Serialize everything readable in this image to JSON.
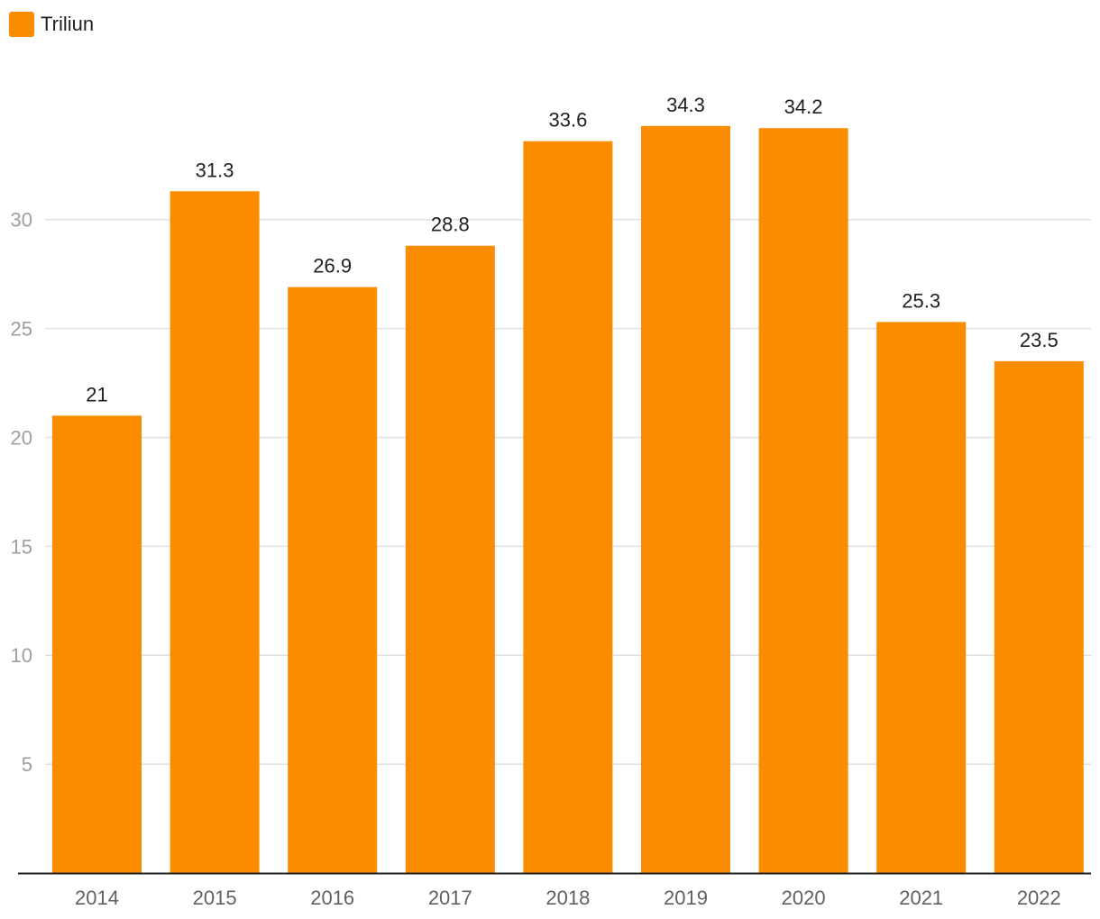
{
  "chart_data": {
    "type": "bar",
    "categories": [
      "2014",
      "2015",
      "2016",
      "2017",
      "2018",
      "2019",
      "2020",
      "2021",
      "2022"
    ],
    "series": [
      {
        "name": "Triliun",
        "values": [
          21,
          31.3,
          26.9,
          28.8,
          33.6,
          34.3,
          34.2,
          25.3,
          23.5
        ]
      }
    ],
    "data_labels": [
      "21",
      "31.3",
      "26.9",
      "28.8",
      "33.6",
      "34.3",
      "34.2",
      "25.3",
      "23.5"
    ],
    "title": "",
    "xlabel": "",
    "ylabel": "",
    "ylim": [
      0,
      37.6
    ],
    "yticks": [
      5,
      10,
      15,
      20,
      25,
      30
    ],
    "grid": true,
    "legend_position": "top-left",
    "bar_color": "#fb8c00"
  }
}
